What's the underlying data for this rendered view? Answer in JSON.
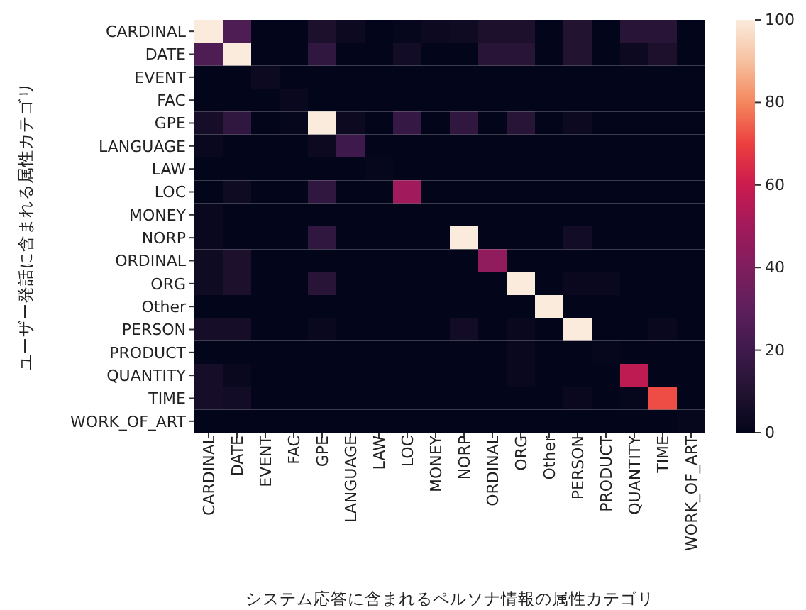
{
  "chart_data": {
    "type": "heatmap",
    "xlabel": "システム応答に含まれるペルソナ情報の属性カテゴリ",
    "ylabel": "ユーザー発話に含まれる属性カテゴリ",
    "categories": [
      "CARDINAL",
      "DATE",
      "EVENT",
      "FAC",
      "GPE",
      "LANGUAGE",
      "LAW",
      "LOC",
      "MONEY",
      "NORP",
      "ORDINAL",
      "ORG",
      "Other",
      "PERSON",
      "PRODUCT",
      "QUANTITY",
      "TIME",
      "WORK_OF_ART"
    ],
    "y_categories": [
      "CARDINAL",
      "DATE",
      "EVENT",
      "FAC",
      "GPE",
      "LANGUAGE",
      "LAW",
      "LOC",
      "MONEY",
      "NORP",
      "ORDINAL",
      "ORG",
      "Other",
      "PERSON",
      "PRODUCT",
      "QUANTITY",
      "TIME",
      "WORK_OF_ART"
    ],
    "cells": [
      [
        100,
        25,
        0,
        0,
        8,
        3,
        0,
        1,
        3,
        4,
        8,
        8,
        0,
        10,
        0,
        12,
        12,
        0
      ],
      [
        25,
        100,
        0,
        0,
        15,
        0,
        0,
        5,
        0,
        0,
        12,
        12,
        0,
        10,
        0,
        3,
        8,
        0
      ],
      [
        0,
        0,
        3,
        0,
        0,
        0,
        0,
        0,
        0,
        0,
        0,
        0,
        0,
        0,
        0,
        0,
        0,
        0
      ],
      [
        0,
        0,
        0,
        2,
        0,
        0,
        0,
        0,
        0,
        0,
        0,
        0,
        0,
        0,
        0,
        0,
        0,
        0
      ],
      [
        6,
        15,
        0,
        1,
        100,
        3,
        0,
        17,
        0,
        15,
        0,
        12,
        0,
        3,
        0,
        0,
        0,
        0
      ],
      [
        2,
        0,
        0,
        0,
        3,
        20,
        0,
        0,
        0,
        0,
        0,
        0,
        0,
        0,
        0,
        0,
        0,
        0
      ],
      [
        0,
        0,
        0,
        0,
        0,
        0,
        1,
        0,
        0,
        0,
        0,
        0,
        0,
        0,
        0,
        0,
        0,
        0
      ],
      [
        0,
        4,
        0,
        0,
        15,
        0,
        0,
        50,
        0,
        0,
        0,
        0,
        0,
        0,
        0,
        0,
        0,
        0
      ],
      [
        2,
        0,
        0,
        0,
        0,
        0,
        0,
        0,
        0,
        0,
        0,
        0,
        0,
        0,
        0,
        0,
        0,
        0
      ],
      [
        2,
        0,
        0,
        0,
        15,
        0,
        0,
        0,
        0,
        100,
        0,
        0,
        0,
        5,
        0,
        0,
        0,
        0
      ],
      [
        4,
        8,
        0,
        0,
        0,
        0,
        0,
        0,
        0,
        0,
        45,
        0,
        0,
        0,
        0,
        0,
        0,
        0
      ],
      [
        4,
        8,
        0,
        0,
        12,
        0,
        0,
        0,
        0,
        0,
        0,
        100,
        0,
        2,
        2,
        0,
        0,
        0
      ],
      [
        0,
        0,
        0,
        0,
        0,
        0,
        0,
        0,
        0,
        0,
        0,
        0,
        100,
        0,
        0,
        0,
        0,
        0
      ],
      [
        6,
        6,
        0,
        0,
        2,
        0,
        0,
        0,
        0,
        5,
        0,
        2,
        0,
        100,
        0,
        0,
        2,
        0
      ],
      [
        0,
        0,
        0,
        0,
        0,
        0,
        0,
        0,
        0,
        0,
        0,
        2,
        0,
        0,
        1,
        0,
        0,
        0
      ],
      [
        6,
        2,
        0,
        0,
        0,
        0,
        0,
        0,
        0,
        0,
        0,
        2,
        0,
        0,
        0,
        57,
        0,
        0
      ],
      [
        6,
        5,
        0,
        0,
        0,
        0,
        0,
        0,
        0,
        0,
        0,
        0,
        0,
        2,
        0,
        1,
        72,
        0
      ],
      [
        0,
        0,
        0,
        0,
        0,
        0,
        0,
        0,
        0,
        0,
        0,
        0,
        0,
        0,
        0,
        0,
        0,
        1
      ]
    ],
    "clim": [
      0,
      100
    ],
    "cticks": [
      0,
      20,
      40,
      60,
      80,
      100
    ]
  }
}
